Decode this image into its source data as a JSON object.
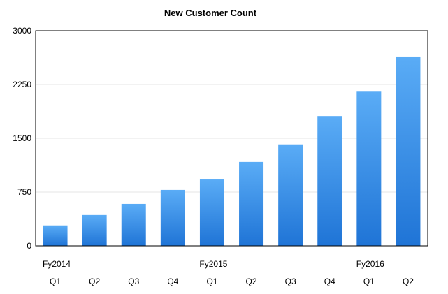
{
  "chart_data": {
    "type": "bar",
    "title": "New Customer Count",
    "xlabel": "",
    "ylabel": "",
    "ylim": [
      0,
      3000
    ],
    "yticks": [
      "0",
      "750",
      "1500",
      "2250",
      "3000"
    ],
    "groups": [
      {
        "label": "Fy2014",
        "start": 0
      },
      {
        "label": "Fy2015",
        "start": 4
      },
      {
        "label": "Fy2016",
        "start": 8
      }
    ],
    "categories": [
      "Q1",
      "Q2",
      "Q3",
      "Q4",
      "Q1",
      "Q2",
      "Q3",
      "Q4",
      "Q1",
      "Q2"
    ],
    "values": [
      285,
      430,
      585,
      780,
      925,
      1170,
      1415,
      1810,
      2150,
      2640
    ],
    "grid": true,
    "legend": "none",
    "colors": {
      "bar_top": "#5AACF6",
      "bar_bottom": "#1F74D6",
      "grid": "#e4e4e4",
      "axis": "#000000"
    }
  }
}
